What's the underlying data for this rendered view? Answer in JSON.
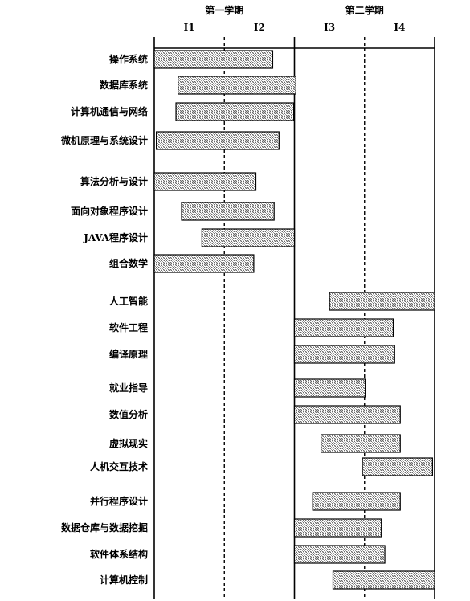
{
  "chart_data": {
    "type": "gantt",
    "semesters": [
      {
        "label": "第一学期",
        "start": 0,
        "end": 2
      },
      {
        "label": "第二学期",
        "start": 2,
        "end": 4
      }
    ],
    "periods": [
      "I1",
      "I2",
      "I3",
      "I4"
    ],
    "x_range": [
      0,
      4
    ],
    "tasks": [
      {
        "name": "操作系统",
        "start": 0.0,
        "end": 1.69
      },
      {
        "name": "数据库系统",
        "start": 0.34,
        "end": 2.02
      },
      {
        "name": "计算机通信与网络",
        "start": 0.31,
        "end": 1.99
      },
      {
        "name": "微机原理与系统设计",
        "start": 0.03,
        "end": 1.78
      },
      {
        "name": "算法分析与设计",
        "start": 0.0,
        "end": 1.45
      },
      {
        "name": "面向对象程序设计",
        "start": 0.39,
        "end": 1.71
      },
      {
        "name": "JAVA程序设计",
        "start": 0.68,
        "end": 2.0
      },
      {
        "name": "组合数学",
        "start": 0.0,
        "end": 1.42
      },
      {
        "name": "人工智能",
        "start": 2.5,
        "end": 4.0
      },
      {
        "name": "软件工程",
        "start": 2.0,
        "end": 3.41
      },
      {
        "name": "编译原理",
        "start": 2.0,
        "end": 3.43
      },
      {
        "name": "就业指导",
        "start": 2.0,
        "end": 3.01
      },
      {
        "name": "数值分析",
        "start": 2.0,
        "end": 3.51
      },
      {
        "name": "虚拟现实",
        "start": 2.38,
        "end": 3.51
      },
      {
        "name": "人机交互技术",
        "start": 2.97,
        "end": 3.97
      },
      {
        "name": "并行程序设计",
        "start": 2.26,
        "end": 3.51
      },
      {
        "name": "数据仓库与数据挖掘",
        "start": 2.0,
        "end": 3.24
      },
      {
        "name": "软件体系结构",
        "start": 2.0,
        "end": 3.29
      },
      {
        "name": "计算机控制",
        "start": 2.55,
        "end": 4.0
      }
    ]
  }
}
